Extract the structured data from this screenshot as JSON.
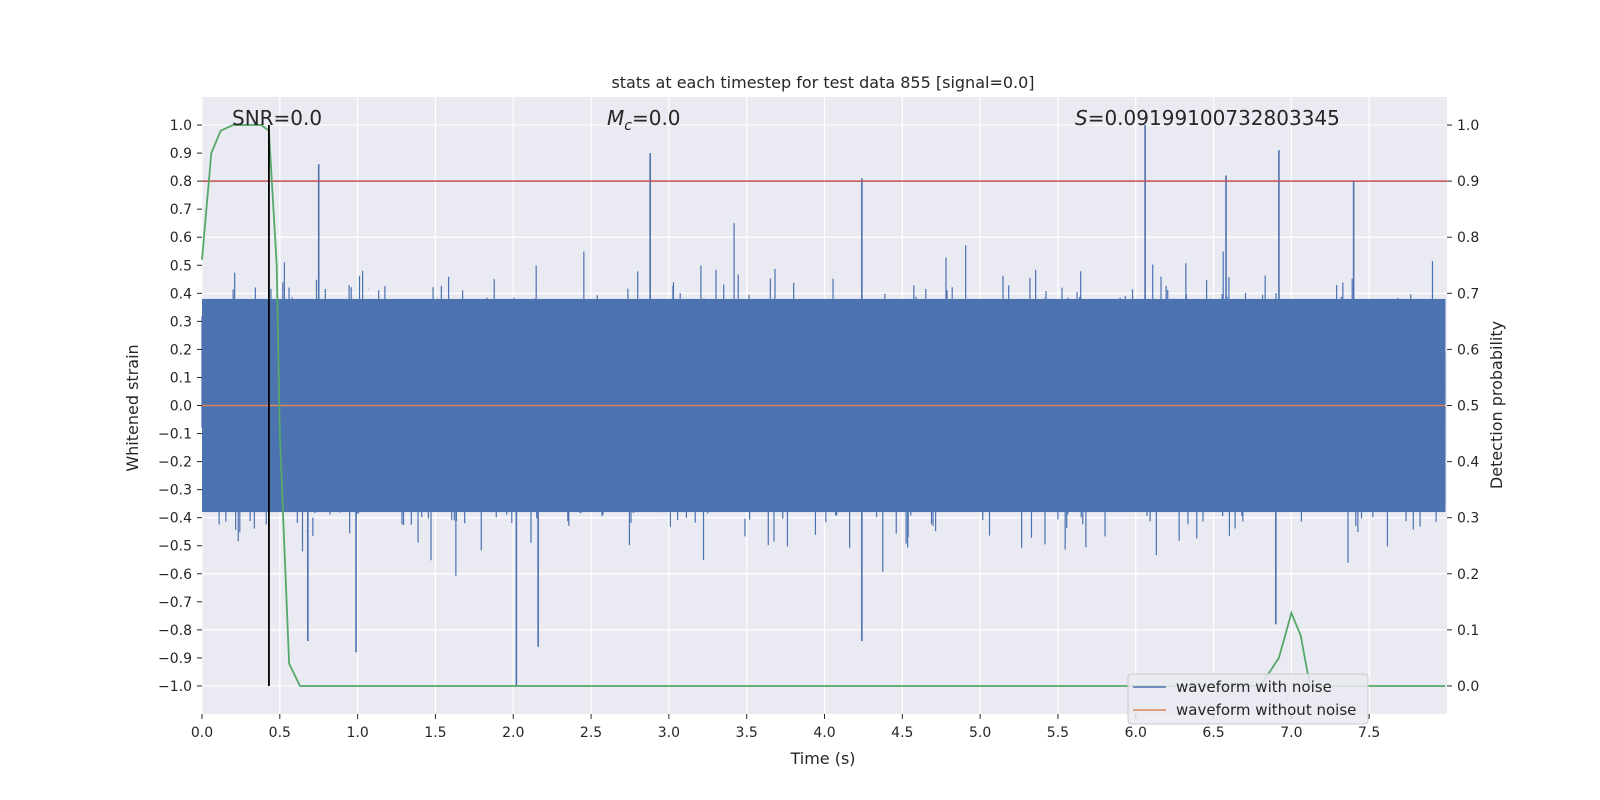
{
  "chart_data": {
    "type": "line",
    "title": "stats at each timestep for test data 855 [signal=0.0]",
    "xlabel": "Time (s)",
    "ylabel_left": "Whitened strain",
    "ylabel_right": "Detection probability",
    "xlim": [
      0.0,
      8.0
    ],
    "ylim_left": [
      -1.1,
      1.1
    ],
    "ylim_right": [
      -0.05,
      1.05
    ],
    "x_ticks": [
      "0.0",
      "0.5",
      "1.0",
      "1.5",
      "2.0",
      "2.5",
      "3.0",
      "3.5",
      "4.0",
      "4.5",
      "5.0",
      "5.5",
      "6.0",
      "6.5",
      "7.0",
      "7.5"
    ],
    "y_ticks_left": [
      "1.0",
      "0.9",
      "0.8",
      "0.7",
      "0.6",
      "0.5",
      "0.4",
      "0.3",
      "0.2",
      "0.1",
      "0.0",
      "-0.1",
      "-0.2",
      "-0.3",
      "-0.4",
      "-0.5",
      "-0.6",
      "-0.7",
      "-0.8",
      "-0.9",
      "-1.0"
    ],
    "y_ticks_right": [
      "1.0",
      "0.9",
      "0.8",
      "0.7",
      "0.6",
      "0.5",
      "0.4",
      "0.3",
      "0.2",
      "0.1",
      "0.0"
    ],
    "annotations": {
      "snr": "SNR=0.0",
      "mc_symbol": "M",
      "mc_sub": "c",
      "mc_value": "=0.0",
      "s_symbol": "S",
      "s_value": "=0.09199100732803345"
    },
    "threshold_right": 0.9,
    "marker_time": 0.43,
    "colors": {
      "noise": "#4c72b0",
      "clean": "#dd8452",
      "probability": "#55a868",
      "threshold": "#c44e52",
      "marker": "#000000",
      "plot_bg": "#eaeaf2",
      "grid": "#ffffff"
    },
    "series": [
      {
        "name": "waveform with noise",
        "axis": "left",
        "description": "whitened noisy strain, dense noise band roughly within ±0.4 with spikes to about ±1.0",
        "peaks": [
          {
            "t": 0.75,
            "v": 0.86
          },
          {
            "t": 2.88,
            "v": 0.9
          },
          {
            "t": 4.24,
            "v": 0.81
          },
          {
            "t": 6.06,
            "v": 1.0
          },
          {
            "t": 6.58,
            "v": 0.82
          },
          {
            "t": 6.92,
            "v": 0.91
          },
          {
            "t": 7.4,
            "v": 0.8
          },
          {
            "t": 2.02,
            "v": -1.0
          },
          {
            "t": 0.99,
            "v": -0.88
          },
          {
            "t": 2.16,
            "v": -0.86
          },
          {
            "t": 4.24,
            "v": -0.84
          },
          {
            "t": 6.9,
            "v": -0.78
          },
          {
            "t": 0.68,
            "v": -0.84
          }
        ]
      },
      {
        "name": "waveform without noise",
        "axis": "left",
        "x": [
          0.0,
          7.99
        ],
        "values": [
          0.0,
          0.0
        ]
      },
      {
        "name": "Detection probability",
        "axis": "right",
        "x": [
          0.0,
          0.06,
          0.12,
          0.2,
          0.3,
          0.38,
          0.43,
          0.48,
          0.5,
          0.56,
          0.63,
          1.0,
          2.0,
          3.0,
          4.0,
          5.0,
          6.0,
          6.8,
          6.92,
          7.0,
          7.06,
          7.12,
          7.3,
          7.99
        ],
        "values": [
          0.76,
          0.95,
          0.99,
          1.0,
          1.0,
          1.0,
          0.99,
          0.75,
          0.45,
          0.04,
          0.0,
          0.0,
          0.0,
          0.0,
          0.0,
          0.0,
          0.0,
          0.0,
          0.05,
          0.13,
          0.09,
          0.0,
          0.0,
          0.0
        ]
      }
    ],
    "legend": {
      "location": "lower-right",
      "entries": [
        "waveform with noise",
        "waveform without noise"
      ]
    }
  }
}
